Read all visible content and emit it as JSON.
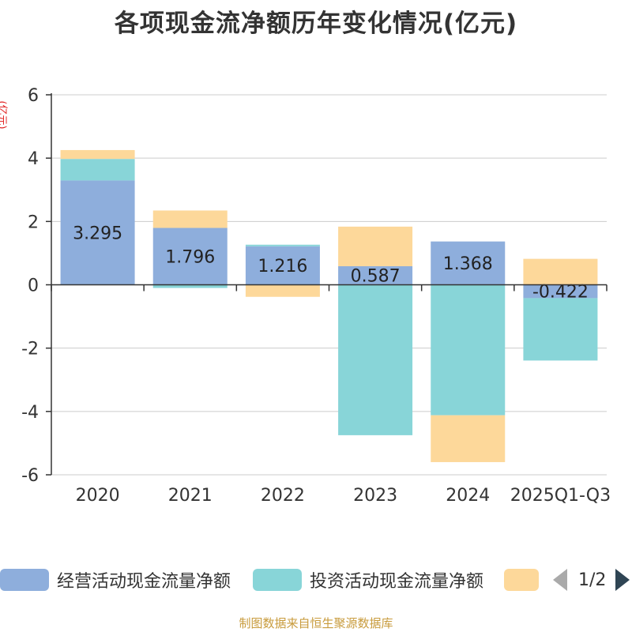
{
  "chart_data": {
    "type": "bar",
    "stacked": true,
    "title": "各项现金流净额历年变化情况(亿元)",
    "ylabel": "(亿元)",
    "ylim": [
      -6,
      6
    ],
    "yticks": [
      -6,
      -4,
      -2,
      0,
      2,
      4,
      6
    ],
    "grid": true,
    "categories": [
      "2020",
      "2021",
      "2022",
      "2023",
      "2024",
      "2025Q1-Q3"
    ],
    "series": [
      {
        "name": "经营活动现金流量净额",
        "color": "#8eaedc",
        "values": [
          3.295,
          1.796,
          1.216,
          0.587,
          1.368,
          -0.422
        ]
      },
      {
        "name": "投资活动现金流量净额",
        "color": "#88d5d8",
        "values": [
          0.68,
          -0.1,
          0.05,
          -4.75,
          -4.12,
          -1.97
        ]
      },
      {
        "name": "",
        "color": "#fdd89a",
        "values": [
          0.28,
          0.55,
          -0.38,
          1.25,
          -1.48,
          0.82
        ]
      }
    ],
    "data_labels": [
      "3.295",
      "1.796",
      "1.216",
      "0.587",
      "1.368",
      "-0.422"
    ],
    "legend_position": "bottom"
  },
  "legend": {
    "items": [
      {
        "label": "经营活动现金流量净额",
        "color": "#8eaedc"
      },
      {
        "label": "投资活动现金流量净额",
        "color": "#88d5d8"
      },
      {
        "label": "",
        "color": "#fdd89a"
      }
    ],
    "page": "1/2"
  },
  "source": "制图数据来自恒生聚源数据库"
}
